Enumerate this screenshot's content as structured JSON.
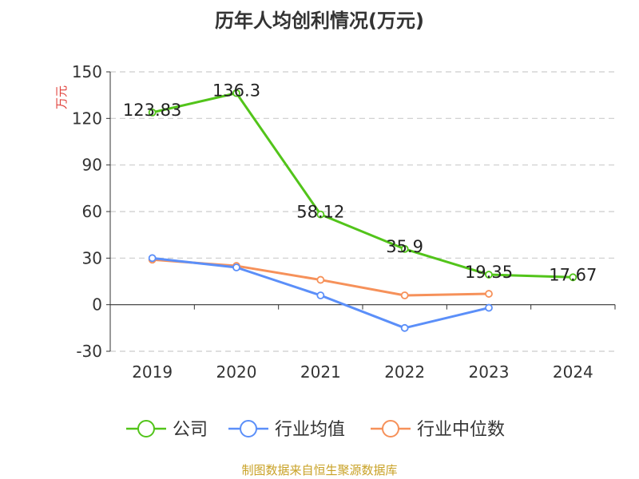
{
  "chart_data": {
    "type": "line",
    "title": "历年人均创利情况(万元)",
    "ylabel": "万元",
    "categories": [
      "2019",
      "2020",
      "2021",
      "2022",
      "2023",
      "2024"
    ],
    "ylim": [
      -30,
      150
    ],
    "yticks": [
      -30,
      0,
      30,
      60,
      90,
      120,
      150
    ],
    "grid": true,
    "legend_position": "bottom",
    "series": [
      {
        "name": "公司",
        "color": "#52c41a",
        "show_labels": true,
        "values": [
          123.83,
          136.3,
          58.12,
          35.9,
          19.35,
          17.67
        ]
      },
      {
        "name": "行业均值",
        "color": "#5b8ff9",
        "show_labels": false,
        "values": [
          30,
          24,
          6,
          -15,
          -2,
          null
        ]
      },
      {
        "name": "行业中位数",
        "color": "#f6915a",
        "show_labels": false,
        "values": [
          29,
          25,
          16,
          6,
          7,
          null
        ]
      }
    ]
  },
  "footer": {
    "source": "制图数据来自恒生聚源数据库"
  }
}
